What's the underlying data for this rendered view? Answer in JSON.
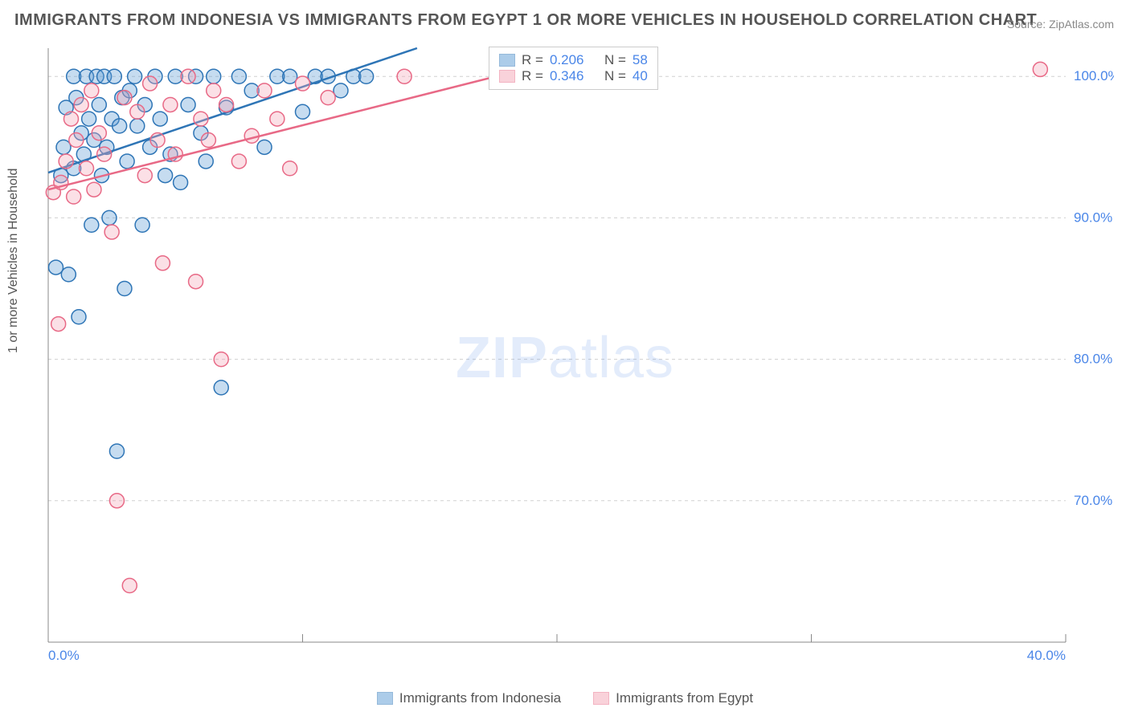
{
  "title": "IMMIGRANTS FROM INDONESIA VS IMMIGRANTS FROM EGYPT 1 OR MORE VEHICLES IN HOUSEHOLD CORRELATION CHART",
  "source": "Source: ZipAtlas.com",
  "ylabel": "1 or more Vehicles in Household",
  "watermark_zip": "ZIP",
  "watermark_atlas": "atlas",
  "chart": {
    "type": "scatter",
    "xlim": [
      0,
      40
    ],
    "ylim": [
      60,
      102
    ],
    "x_ticks": [
      0,
      40
    ],
    "x_tick_labels": [
      "0.0%",
      "40.0%"
    ],
    "y_ticks": [
      70,
      80,
      90,
      100
    ],
    "y_tick_labels": [
      "70.0%",
      "80.0%",
      "90.0%",
      "100.0%"
    ],
    "grid_color": "#d0d0d0",
    "axis_color": "#888888",
    "tick_label_color": "#4a86e8",
    "background_color": "#ffffff",
    "marker_radius": 9,
    "marker_stroke_width": 1.5,
    "marker_fill_opacity": 0.35,
    "series": [
      {
        "name": "Immigrants from Indonesia",
        "color": "#5b9bd5",
        "stroke": "#2e75b6",
        "R": "0.206",
        "N": "58",
        "trend": {
          "x1": 0,
          "y1": 93.2,
          "x2": 14.5,
          "y2": 102
        },
        "points": [
          [
            0.3,
            86.5
          ],
          [
            0.5,
            93.0
          ],
          [
            0.6,
            95.0
          ],
          [
            0.7,
            97.8
          ],
          [
            0.8,
            86.0
          ],
          [
            1.0,
            93.5
          ],
          [
            1.0,
            100.0
          ],
          [
            1.1,
            98.5
          ],
          [
            1.2,
            83.0
          ],
          [
            1.3,
            96.0
          ],
          [
            1.4,
            94.5
          ],
          [
            1.5,
            100.0
          ],
          [
            1.6,
            97.0
          ],
          [
            1.7,
            89.5
          ],
          [
            1.8,
            95.5
          ],
          [
            1.9,
            100.0
          ],
          [
            2.0,
            98.0
          ],
          [
            2.1,
            93.0
          ],
          [
            2.2,
            100.0
          ],
          [
            2.3,
            95.0
          ],
          [
            2.4,
            90.0
          ],
          [
            2.5,
            97.0
          ],
          [
            2.6,
            100.0
          ],
          [
            2.7,
            73.5
          ],
          [
            2.8,
            96.5
          ],
          [
            2.9,
            98.5
          ],
          [
            3.0,
            85.0
          ],
          [
            3.1,
            94.0
          ],
          [
            3.2,
            99.0
          ],
          [
            3.4,
            100.0
          ],
          [
            3.5,
            96.5
          ],
          [
            3.7,
            89.5
          ],
          [
            3.8,
            98.0
          ],
          [
            4.0,
            95.0
          ],
          [
            4.2,
            100.0
          ],
          [
            4.4,
            97.0
          ],
          [
            4.6,
            93.0
          ],
          [
            4.8,
            94.5
          ],
          [
            5.0,
            100.0
          ],
          [
            5.2,
            92.5
          ],
          [
            5.5,
            98.0
          ],
          [
            5.8,
            100.0
          ],
          [
            6.0,
            96.0
          ],
          [
            6.2,
            94.0
          ],
          [
            6.5,
            100.0
          ],
          [
            6.8,
            78.0
          ],
          [
            7.0,
            97.8
          ],
          [
            7.5,
            100.0
          ],
          [
            8.0,
            99.0
          ],
          [
            8.5,
            95.0
          ],
          [
            9.0,
            100.0
          ],
          [
            9.5,
            100.0
          ],
          [
            10.0,
            97.5
          ],
          [
            10.5,
            100.0
          ],
          [
            11.0,
            100.0
          ],
          [
            11.5,
            99.0
          ],
          [
            12.0,
            100.0
          ],
          [
            12.5,
            100.0
          ]
        ]
      },
      {
        "name": "Immigrants from Egypt",
        "color": "#f4a6b7",
        "stroke": "#e86986",
        "R": "0.346",
        "N": "40",
        "trend": {
          "x1": 0,
          "y1": 92.0,
          "x2": 22,
          "y2": 102
        },
        "points": [
          [
            0.2,
            91.8
          ],
          [
            0.4,
            82.5
          ],
          [
            0.5,
            92.5
          ],
          [
            0.7,
            94.0
          ],
          [
            0.9,
            97.0
          ],
          [
            1.0,
            91.5
          ],
          [
            1.1,
            95.5
          ],
          [
            1.3,
            98.0
          ],
          [
            1.5,
            93.5
          ],
          [
            1.7,
            99.0
          ],
          [
            1.8,
            92.0
          ],
          [
            2.0,
            96.0
          ],
          [
            2.2,
            94.5
          ],
          [
            2.5,
            89.0
          ],
          [
            2.7,
            70.0
          ],
          [
            3.0,
            98.5
          ],
          [
            3.2,
            64.0
          ],
          [
            3.5,
            97.5
          ],
          [
            3.8,
            93.0
          ],
          [
            4.0,
            99.5
          ],
          [
            4.3,
            95.5
          ],
          [
            4.5,
            86.8
          ],
          [
            4.8,
            98.0
          ],
          [
            5.0,
            94.5
          ],
          [
            5.5,
            100.0
          ],
          [
            5.8,
            85.5
          ],
          [
            6.0,
            97.0
          ],
          [
            6.3,
            95.5
          ],
          [
            6.5,
            99.0
          ],
          [
            6.8,
            80.0
          ],
          [
            7.0,
            98.0
          ],
          [
            7.5,
            94.0
          ],
          [
            8.0,
            95.8
          ],
          [
            8.5,
            99.0
          ],
          [
            9.0,
            97.0
          ],
          [
            9.5,
            93.5
          ],
          [
            10.0,
            99.5
          ],
          [
            11.0,
            98.5
          ],
          [
            14.0,
            100.0
          ],
          [
            39.0,
            100.5
          ]
        ]
      }
    ]
  },
  "legend_labels": {
    "R": "R =",
    "N": "N ="
  },
  "bottom_legend": [
    {
      "label": "Immigrants from Indonesia",
      "color": "#5b9bd5",
      "stroke": "#2e75b6"
    },
    {
      "label": "Immigrants from Egypt",
      "color": "#f4a6b7",
      "stroke": "#e86986"
    }
  ]
}
